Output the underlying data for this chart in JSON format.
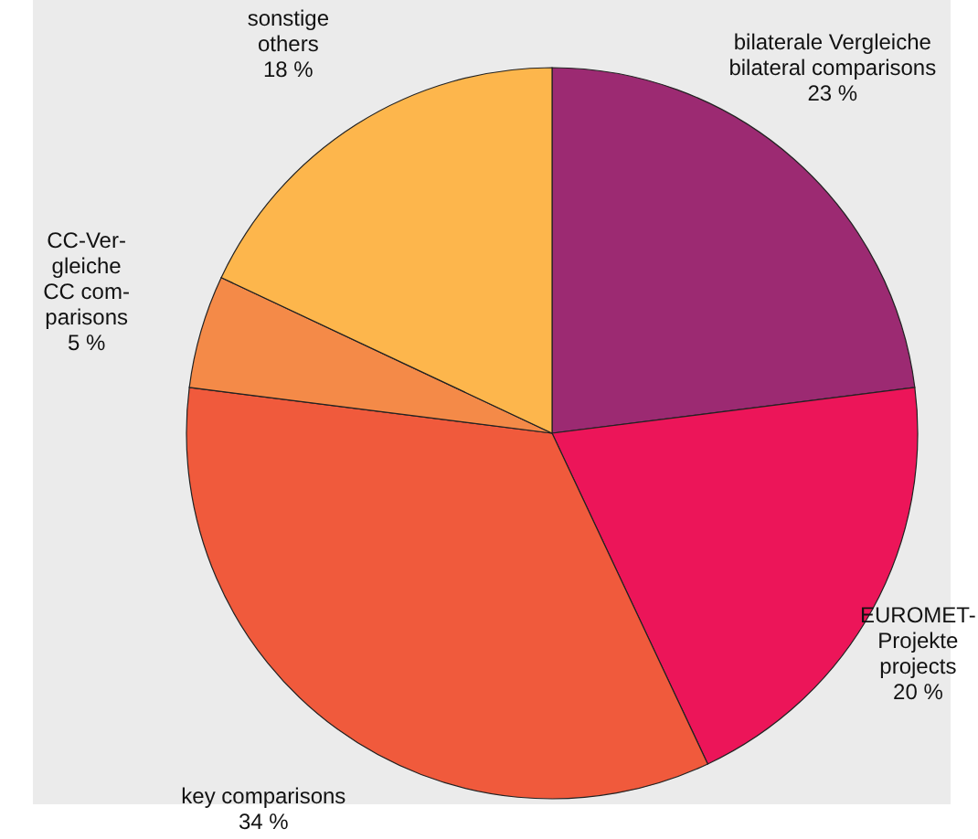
{
  "chart_data": {
    "type": "pie",
    "categories": [
      "bilaterale Vergleiche\nbilateral comparisons",
      "EUROMET-\nProjekte\nprojects",
      "key comparisons",
      "CC-Ver-\ngleiche\nCC com-\nparisons",
      "sonstige\nothers"
    ],
    "values": [
      23,
      20,
      34,
      5,
      18
    ],
    "value_labels": [
      "23 %",
      "20 %",
      "34 %",
      "5 %",
      "18 %"
    ],
    "colors": [
      "#9c2a72",
      "#ec1559",
      "#f05a3c",
      "#f48a48",
      "#fdb64c"
    ]
  }
}
